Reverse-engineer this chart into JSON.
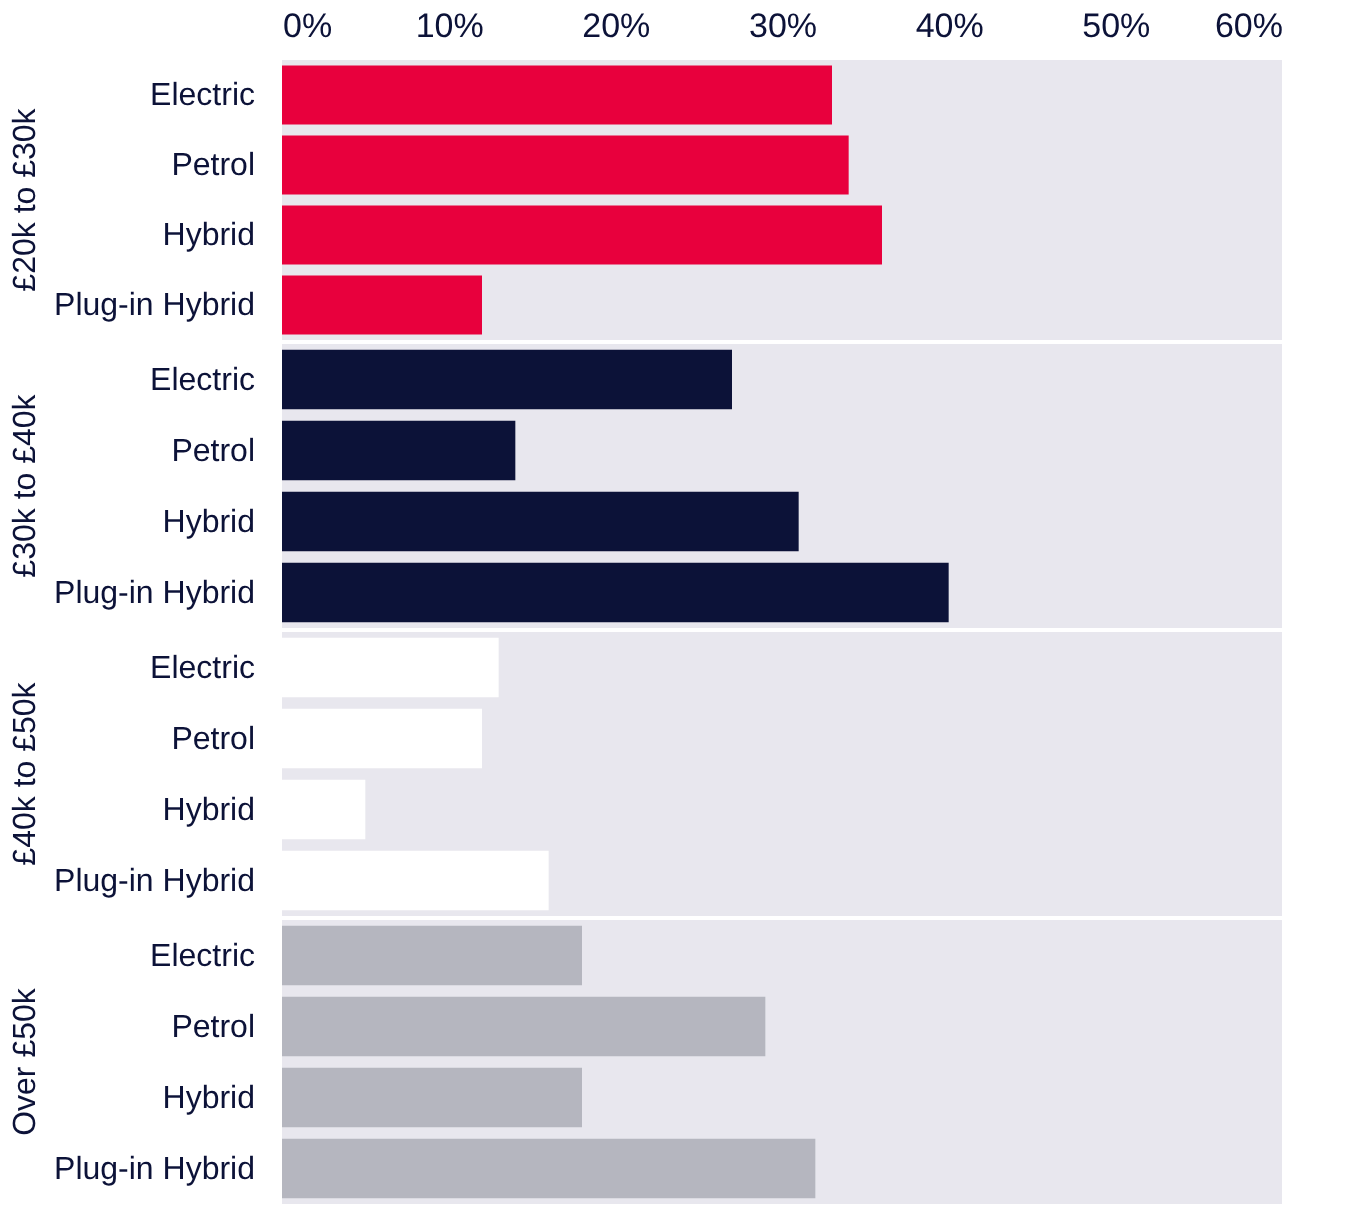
{
  "chart_data": [
    {
      "type": "bar",
      "title": "£20k to £30k",
      "orientation": "horizontal",
      "categories": [
        "Electric",
        "Petrol",
        "Hybrid",
        "Plug-in Hybrid"
      ],
      "values": [
        33,
        34,
        36,
        12
      ],
      "color": "#e8003d",
      "xlim": [
        0,
        60
      ],
      "xticks": [
        {
          "value": 0,
          "label": "0%"
        },
        {
          "value": 10,
          "label": "10%"
        },
        {
          "value": 20,
          "label": "20%"
        },
        {
          "value": 30,
          "label": "30%"
        },
        {
          "value": 40,
          "label": "40%"
        },
        {
          "value": 50,
          "label": "50%"
        },
        {
          "value": 60,
          "label": "60%"
        }
      ]
    },
    {
      "type": "bar",
      "title": "£30k to £40k",
      "orientation": "horizontal",
      "categories": [
        "Electric",
        "Petrol",
        "Hybrid",
        "Plug-in Hybrid"
      ],
      "values": [
        27,
        14,
        31,
        40
      ],
      "color": "#0c1238",
      "xlim": [
        0,
        60
      ],
      "tick_labels": "y"
    },
    {
      "type": "bar",
      "title": "£40k to £50k",
      "orientation": "horizontal",
      "categories": [
        "Electric",
        "Petrol",
        "Hybrid",
        "Plug-in Hybrid"
      ],
      "values": [
        13,
        12,
        5,
        16
      ],
      "color": "#ffffff",
      "xlim": [
        0,
        60
      ],
      "tick_labels": "y"
    },
    {
      "type": "bar",
      "title": "Over £50k",
      "orientation": "horizontal",
      "categories": [
        "Electric",
        "Petrol",
        "Hybrid",
        "Plug-in Hybrid"
      ],
      "values": [
        18,
        29,
        18,
        32
      ],
      "color": "#b5b6bf",
      "xlim": [
        0,
        60
      ],
      "tick_labels": "y"
    }
  ]
}
